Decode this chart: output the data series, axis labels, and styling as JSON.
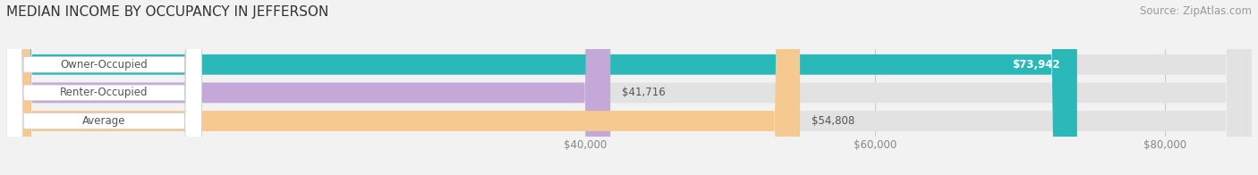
{
  "title": "MEDIAN INCOME BY OCCUPANCY IN JEFFERSON",
  "source": "Source: ZipAtlas.com",
  "categories": [
    "Owner-Occupied",
    "Renter-Occupied",
    "Average"
  ],
  "values": [
    73942,
    41716,
    54808
  ],
  "labels": [
    "$73,942",
    "$41,716",
    "$54,808"
  ],
  "label_inside": [
    true,
    false,
    false
  ],
  "bar_colors": [
    "#2ab8b8",
    "#c4a8d8",
    "#f5c990"
  ],
  "x_min": 0,
  "x_max": 86000,
  "x_ticks": [
    40000,
    60000,
    80000
  ],
  "x_tick_labels": [
    "$40,000",
    "$60,000",
    "$80,000"
  ],
  "background_color": "#f2f2f2",
  "bar_bg_color": "#e2e2e2",
  "title_fontsize": 11,
  "source_fontsize": 8.5,
  "label_fontsize": 8.5,
  "tick_fontsize": 8.5,
  "cat_fontsize": 8.5
}
